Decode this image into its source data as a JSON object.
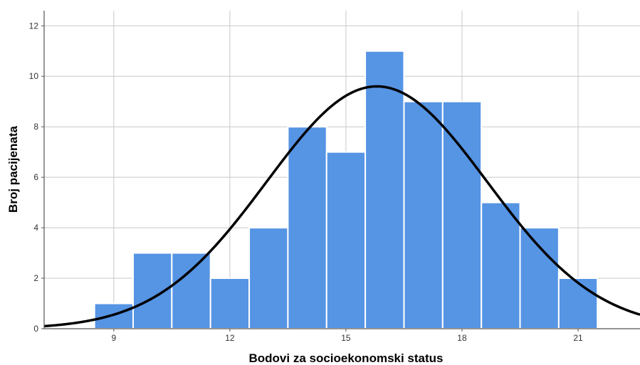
{
  "chart_data": {
    "type": "bar",
    "subtype": "histogram",
    "xlabel": "Bodovi za socioekonomski status",
    "ylabel": "Broj pacijenata",
    "xlim": [
      7.2,
      22.6
    ],
    "ylim": [
      0,
      12.6
    ],
    "x_ticks": [
      9,
      12,
      15,
      18,
      21
    ],
    "y_ticks": [
      0,
      2,
      4,
      6,
      8,
      10,
      12
    ],
    "bin_width": 1,
    "bins": [
      {
        "x": 9,
        "count": 1
      },
      {
        "x": 10,
        "count": 3
      },
      {
        "x": 11,
        "count": 3
      },
      {
        "x": 12,
        "count": 2
      },
      {
        "x": 13,
        "count": 4
      },
      {
        "x": 14,
        "count": 8
      },
      {
        "x": 15,
        "count": 7
      },
      {
        "x": 16,
        "count": 11
      },
      {
        "x": 17,
        "count": 9
      },
      {
        "x": 18,
        "count": 9
      },
      {
        "x": 19,
        "count": 5
      },
      {
        "x": 20,
        "count": 4
      },
      {
        "x": 21,
        "count": 2
      }
    ],
    "normal_curve": {
      "mean": 15.8,
      "sd": 2.85,
      "peak": 9.6
    },
    "grid": true,
    "colors": {
      "bar": "#5694e4",
      "bar_edge": "#ffffff",
      "curve": "#000000",
      "grid": "#c8c8c8",
      "axis": "#555555"
    }
  }
}
